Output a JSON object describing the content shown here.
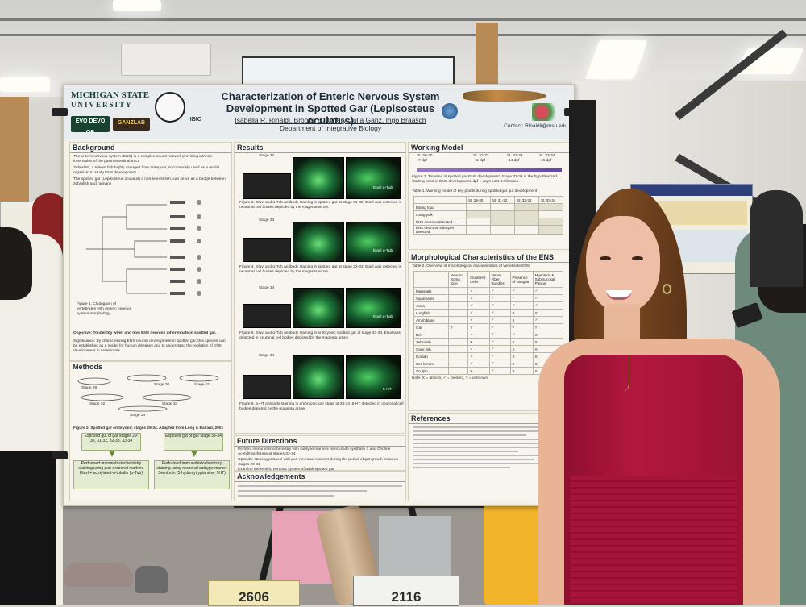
{
  "poster": {
    "institution_line1": "MICHIGAN STATE",
    "institution_line2": "UNIVERSITY",
    "logo_evo": "EVO DEVO OB",
    "logo_lab": "GANZLAB",
    "logo_society": "IBIO",
    "title_line1": "Characterization of Enteric Nervous System",
    "title_line2": "Development in Spotted Gar (Lepisosteus oculatus)",
    "authors": "Isabella R. Rinaldi, Brooke E. Jeffery, Julia Ganz, Ingo Braasch",
    "department": "Department of Integrative Biology",
    "contact": "Contact: Rinaldii@msu.edu",
    "sections": {
      "background": "Background",
      "methods": "Methods",
      "results": "Results",
      "working_model": "Working Model",
      "morphological": "Morphological Characteristics of the ENS",
      "future": "Future Directions",
      "acknowledgements": "Acknowledgements",
      "references": "References"
    },
    "background_points": [
      "The enteric nervous system (ENS) is a complex neural network providing intrinsic innervation of the gastrointestinal tract",
      "Zebrafish, a teleost fish highly diverged from tetrapods, is commonly used as a model organism to study ENS development.",
      "The spotted gar (Lepisosteus oculatus) a non-teleost fish, can serve as a bridge between zebrafish and humans"
    ],
    "figure1_caption": "Figure 1. Cladogram of vertebrates with enteric nervous system morphology",
    "objective": "Objective: To identify when and how ENS neurons differentiate in spotted gar.",
    "significance": "Significance: By characterizing ENS neuron development in spotted gar, this species can be established as a model for human diseases and to understand the evolution of ENS development in vertebrates.",
    "methods_stages": [
      "Stage 29",
      "Stage 30",
      "Stage 31",
      "Stage 32",
      "Stage 33",
      "Stage 34"
    ],
    "figure2_caption": "Figure 2. Spotted gar embryonic stages 29-34. Adapted from Long & Ballard, 2001",
    "flow_left_1": "Exposed gut of gar stages 29-30, 31-32, 32-33, 33-34",
    "flow_right_1": "Exposed gut of gar stage 33-34",
    "flow_left_2": "Performed immunohistochemistry staining using pan-neuronal markers Elavl + acetylated-α-tubulin (α-Tub)",
    "flow_right_2": "Performed immunohistochemistry staining using neuronal subtype marker Serotonin (5-hydroxytryptamine; 5HT)",
    "results_stages": [
      "Stage 32",
      "Stage 33",
      "Stage 34",
      "Stage 34"
    ],
    "figure3_caption": "Figure 3. Elavl and α-Tub antibody staining in spotted gar at stage 31-32. Elavl was detected in neuronal cell bodies depicted by the magenta arrow.",
    "figure4_caption": "Figure 4. Elavl and α-Tub antibody staining in spotted gar at stage 32-33. Elavl was detected in neuronal cell bodies depicted by the magenta arrow.",
    "figure5_caption": "Figure 5. Elavl and α-Tub antibody staining in embryonic spotted gar at stage 33-34. Elavl was detected in neuronal cell bodies depicted by the magenta arrow.",
    "figure6_caption": "Figure 6. 5-HT antibody staining in embryonic gar stage at 33-34. 5-HT detected in neuronal cell bodies depicted by the magenta arrow.",
    "stain_labels": [
      "Elavl α-Tub",
      "Elavl α-Tub",
      "Elavl α-Tub",
      "5-HT"
    ],
    "timeline_labels": [
      "St. 29-30",
      "St. 31-32",
      "St. 32-33",
      "St. 33-34"
    ],
    "timeline_days": [
      "7 dpf",
      "11 dpf",
      "14 dpf",
      "15 dpf"
    ],
    "figure7_caption": "Figure 7. Timeline of spotted gar ENS development. Stage 31-32 is the hypothesized starting point of ENS development. dpf = days post fertilization.",
    "table1_caption": "Table 1. Working model of key points during spotted gar gut development",
    "table1_rows": [
      "Eating food",
      "Using yolk",
      "ENS neurons detected",
      "ENS neuronal subtypes detected"
    ],
    "table2_caption": "Table 2. Overview of morphological characteristics of vertebrate ENS",
    "table2_headers": [
      "Neuron Soma Size",
      "Clustered Cells",
      "Nerve Fiber Bundles",
      "Presence of Ganglia",
      "Myenteric & Submucosal Plexus"
    ],
    "table2_species": [
      "Mammals",
      "Squamates",
      "Avian",
      "Lungfish",
      "Amphibians",
      "Gar",
      "Eel",
      "Zebrafish",
      "Cave fish",
      "Dorado",
      "Sea bream",
      "Sculpin"
    ],
    "table2_note": "Note. X = absent, ✓ = present, ? = unknown.",
    "future_points": [
      "Perform immunohistochemistry with subtype markers Nitric oxide synthase 1 and Choline Acetyltransferase at stages 33-34",
      "Optimize staining protocol with pan-neuronal markers during the period of gut growth between stages 29-31",
      "Examine the enteric nervous system of adult spotted gar"
    ]
  },
  "board_numbers": [
    "2606",
    "2116"
  ],
  "colors": {
    "poster_bg": "#f4f1e6",
    "msu_green": "#1b3d33",
    "fluorescence": "#4ecf62",
    "dress": "#b3173e"
  }
}
